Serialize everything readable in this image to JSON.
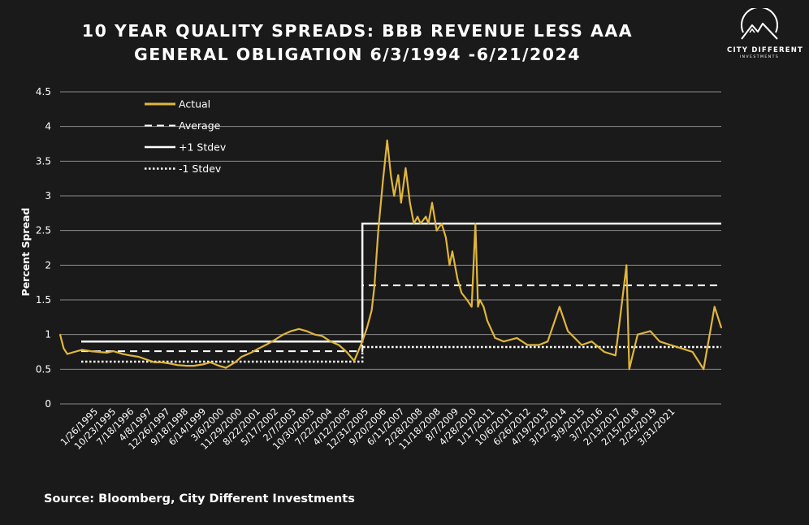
{
  "title_line1": "10 YEAR QUALITY SPREADS: BBB REVENUE LESS AAA",
  "title_line2": "GENERAL OBLIGATION 6/3/1994 -6/21/2024",
  "logo": {
    "brand": "CITY DIFFERENT",
    "sub": "INVESTMENTS",
    "icon": "mountain-circle-icon"
  },
  "source": "Source: Bloomberg, City Different Investments",
  "colors": {
    "background": "#1a1a1a",
    "actual": "#e0b63c",
    "text": "#ffffff",
    "grid": "#8a8a8a"
  },
  "chart_data": {
    "type": "line",
    "title": "10 YEAR QUALITY SPREADS: BBB REVENUE LESS AAA GENERAL OBLIGATION 6/3/1994 -6/21/2024",
    "xlabel": "",
    "ylabel": "Percent Spread",
    "ylim": [
      0,
      4.5
    ],
    "yticks": [
      "0",
      "0.5",
      "1",
      "1.5",
      "2",
      "2.5",
      "3",
      "3.5",
      "4",
      "4.5"
    ],
    "xticks": [
      "1/26/1995",
      "10/23/1995",
      "7/18/1996",
      "4/8/1997",
      "12/26/1997",
      "9/18/1998",
      "6/14/1999",
      "3/6/2000",
      "11/29/2000",
      "8/22/2001",
      "5/17/2002",
      "2/7/2003",
      "10/30/2003",
      "7/22/2004",
      "4/12/2005",
      "12/31/2005",
      "9/20/2006",
      "6/11/2007",
      "2/28/2008",
      "11/18/2008",
      "8/7/2009",
      "4/28/2010",
      "1/17/2011",
      "10/6/2011",
      "6/26/2012",
      "4/19/2013",
      "3/12/2014",
      "3/9/2015",
      "3/7/2016",
      "2/13/2017",
      "2/15/2018",
      "2/25/2019",
      "3/31/2021"
    ],
    "grid": true,
    "legend": "top-left",
    "x_start": "6/3/1994",
    "x_end": "6/21/2024",
    "series": [
      {
        "name": "Actual",
        "style": "solid-gold",
        "x": [
          "6/3/1994",
          "8/1/1994",
          "10/1/1994",
          "1/26/1995",
          "6/1/1995",
          "10/23/1995",
          "3/1/1996",
          "7/18/1996",
          "11/1/1996",
          "4/8/1997",
          "8/1/1997",
          "12/26/1997",
          "4/1/1998",
          "9/18/1998",
          "1/15/1999",
          "6/14/1999",
          "10/1/1999",
          "3/6/2000",
          "7/1/2000",
          "11/29/2000",
          "4/1/2001",
          "8/22/2001",
          "12/15/2001",
          "5/17/2002",
          "9/1/2002",
          "2/7/2003",
          "6/15/2003",
          "10/30/2003",
          "3/1/2004",
          "7/22/2004",
          "12/1/2004",
          "4/12/2005",
          "8/15/2005",
          "12/31/2005",
          "5/1/2006",
          "9/20/2006",
          "2/1/2007",
          "6/11/2007",
          "10/15/2007",
          "2/28/2008",
          "5/15/2008",
          "8/1/2008",
          "9/15/2008",
          "11/18/2008",
          "12/20/2008",
          "2/1/2009",
          "4/15/2009",
          "6/15/2009",
          "8/7/2009",
          "10/15/2009",
          "12/1/2009",
          "2/15/2010",
          "4/28/2010",
          "7/1/2010",
          "9/1/2010",
          "10/20/2010",
          "1/17/2011",
          "3/1/2011",
          "5/1/2011",
          "7/15/2011",
          "10/6/2011",
          "12/15/2011",
          "2/15/2012",
          "4/1/2012",
          "6/26/2012",
          "9/1/2012",
          "12/1/2012",
          "2/15/2013",
          "4/19/2013",
          "6/1/2013",
          "7/1/2013",
          "9/1/2013",
          "11/1/2013",
          "3/12/2014",
          "8/1/2014",
          "3/9/2015",
          "9/1/2015",
          "3/7/2016",
          "8/1/2016",
          "2/13/2017",
          "7/1/2017",
          "2/15/2018",
          "8/1/2018",
          "2/25/2019",
          "9/1/2019",
          "3/1/2020",
          "4/15/2020",
          "9/1/2020",
          "3/31/2021",
          "9/1/2021",
          "3/1/2022",
          "9/1/2022",
          "3/1/2023",
          "9/1/2023",
          "3/1/2024",
          "6/21/2024"
        ],
        "values": [
          1.0,
          0.8,
          0.72,
          0.75,
          0.78,
          0.76,
          0.75,
          0.74,
          0.76,
          0.72,
          0.7,
          0.68,
          0.65,
          0.6,
          0.6,
          0.58,
          0.56,
          0.55,
          0.55,
          0.57,
          0.6,
          0.55,
          0.52,
          0.6,
          0.68,
          0.74,
          0.8,
          0.86,
          0.92,
          1.0,
          1.05,
          1.08,
          1.05,
          1.0,
          0.98,
          0.9,
          0.85,
          0.75,
          0.62,
          0.9,
          1.1,
          1.35,
          1.7,
          2.5,
          2.8,
          3.2,
          3.8,
          3.3,
          3.0,
          3.3,
          2.9,
          3.4,
          2.9,
          2.6,
          2.7,
          2.6,
          2.7,
          2.6,
          2.9,
          2.5,
          2.6,
          2.4,
          2.0,
          2.2,
          1.8,
          1.6,
          1.5,
          1.4,
          2.6,
          1.4,
          1.5,
          1.4,
          1.2,
          0.95,
          0.9,
          0.95,
          0.85,
          0.85,
          0.9,
          1.4,
          1.05,
          0.85,
          0.9,
          0.75,
          0.7,
          2.0,
          0.5,
          1.0,
          1.05,
          0.9,
          0.85,
          0.8,
          0.75,
          0.5,
          1.4,
          1.1
        ]
      },
      {
        "name": "Average",
        "style": "dashed-white",
        "segments": [
          {
            "from": "6/3/1994",
            "to": "2/28/2008",
            "value": 0.76
          },
          {
            "from": "2/28/2008",
            "to": "6/21/2024",
            "value": 1.71
          }
        ]
      },
      {
        "name": "+1 Stdev",
        "style": "solid-white",
        "segments": [
          {
            "from": "6/3/1994",
            "to": "2/28/2008",
            "value": 0.9
          },
          {
            "from": "2/28/2008",
            "to": "6/21/2024",
            "value": 2.6
          }
        ]
      },
      {
        "name": "-1 Stdev",
        "style": "dotted-white",
        "segments": [
          {
            "from": "6/3/1994",
            "to": "2/28/2008",
            "value": 0.61
          },
          {
            "from": "2/28/2008",
            "to": "6/21/2024",
            "value": 0.82
          }
        ]
      }
    ]
  }
}
